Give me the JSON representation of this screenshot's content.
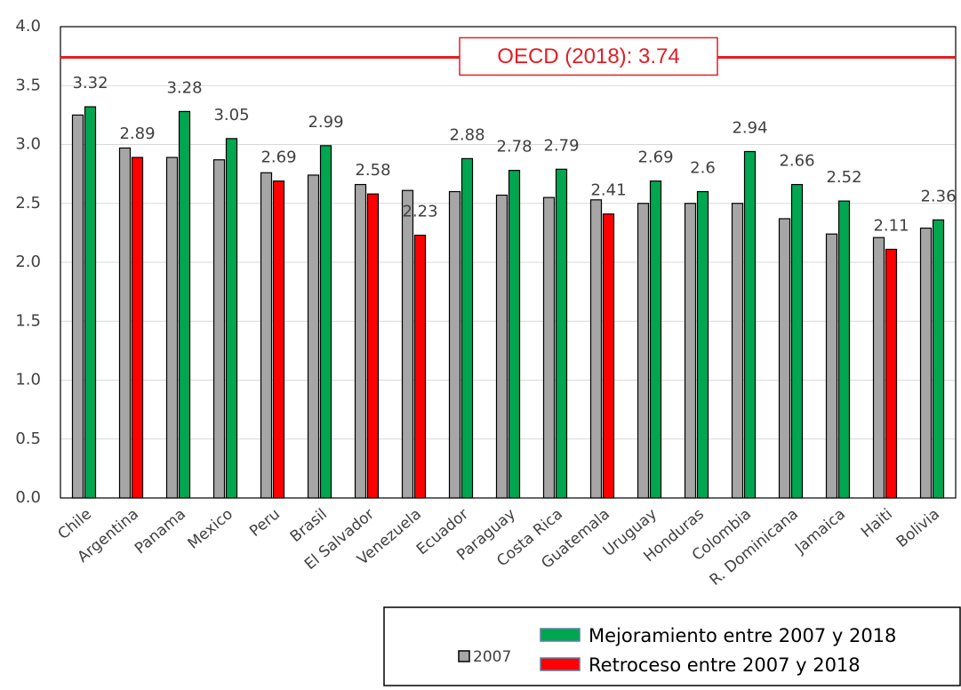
{
  "chart_data": {
    "type": "bar",
    "categories": [
      "Chile",
      "Argentina",
      "Panama",
      "Mexico",
      "Peru",
      "Brasil",
      "El Salvador",
      "Venezuela",
      "Ecuador",
      "Paraguay",
      "Costa Rica",
      "Guatemala",
      "Uruguay",
      "Honduras",
      "Colombia",
      "R. Dominicana",
      "Jamaica",
      "Haiti",
      "Bolivia"
    ],
    "series": [
      {
        "name": "2007",
        "color": "#a6a6a6",
        "values": [
          3.25,
          2.97,
          2.89,
          2.87,
          2.76,
          2.74,
          2.66,
          2.61,
          2.6,
          2.57,
          2.55,
          2.53,
          2.5,
          2.5,
          2.5,
          2.37,
          2.24,
          2.21,
          2.29
        ]
      },
      {
        "name": "Mejoramiento entre 2007 y 2018",
        "color": "#00a650",
        "values": [
          3.32,
          null,
          3.28,
          3.05,
          null,
          2.99,
          null,
          null,
          2.88,
          2.78,
          2.79,
          null,
          2.69,
          2.6,
          2.94,
          2.66,
          2.52,
          null,
          2.36
        ]
      },
      {
        "name": "Retroceso entre 2007 y 2018",
        "color": "#ff0000",
        "values": [
          null,
          2.89,
          null,
          null,
          2.69,
          null,
          2.58,
          2.23,
          null,
          null,
          null,
          2.41,
          null,
          null,
          null,
          null,
          null,
          2.11,
          null
        ]
      }
    ],
    "ylim": [
      0,
      4
    ],
    "yticks": [
      {
        "value": 0,
        "label": "0.0"
      },
      {
        "value": 0.5,
        "label": "0.5"
      },
      {
        "value": 1,
        "label": "1.0"
      },
      {
        "value": 1.5,
        "label": "1.5"
      },
      {
        "value": 2,
        "label": "2.0"
      },
      {
        "value": 2.5,
        "label": "2.5"
      },
      {
        "value": 3,
        "label": "3.0"
      },
      {
        "value": 3.5,
        "label": "3.5"
      },
      {
        "value": 4,
        "label": "4.0"
      }
    ],
    "grid": true,
    "reference_line": {
      "value": 3.74,
      "label": "OECD (2018): 3.74",
      "color": "#e31e24"
    }
  }
}
